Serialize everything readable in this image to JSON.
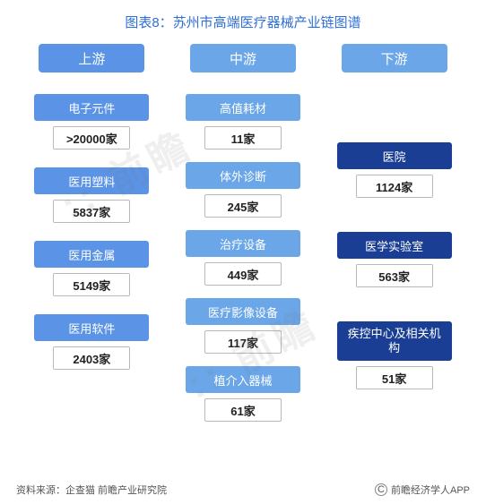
{
  "title": {
    "text": "图表8：苏州市高端医疗器械产业链图谱",
    "color": "#2e6fd8",
    "fontsize": 15
  },
  "layout": {
    "type": "infographic",
    "columns": 3
  },
  "header_fontsize": 15,
  "category_fontsize": 13,
  "count_fontsize": 13,
  "count_border_color": "#b9b9b9",
  "count_text_color": "#222222",
  "columns": [
    {
      "header": "上游",
      "header_color": "#5b93e6",
      "category_color": "#5b93e6",
      "top_gap": 0,
      "group_gap": 10,
      "items": [
        {
          "label": "电子元件",
          "count": ">20000家"
        },
        {
          "label": "医用塑料",
          "count": "5837家"
        },
        {
          "label": "医用金属",
          "count": "5149家"
        },
        {
          "label": "医用软件",
          "count": "2403家"
        }
      ]
    },
    {
      "header": "中游",
      "header_color": "#6aa6e8",
      "category_color": "#6aa6e8",
      "top_gap": 0,
      "group_gap": 4,
      "items": [
        {
          "label": "高值耗材",
          "count": "11家"
        },
        {
          "label": "体外诊断",
          "count": "245家"
        },
        {
          "label": "治疗设备",
          "count": "449家"
        },
        {
          "label": "医疗影像设备",
          "count": "117家"
        },
        {
          "label": "植介入器械",
          "count": "61家"
        }
      ]
    },
    {
      "header": "下游",
      "header_color": "#6aa6e8",
      "category_color": "#1b3e95",
      "top_gap": 54,
      "group_gap": 28,
      "items": [
        {
          "label": "医院",
          "count": "1124家"
        },
        {
          "label": "医学实验室",
          "count": "563家"
        },
        {
          "label": "疾控中心及相关机构",
          "count": "51家",
          "multiline": true
        }
      ]
    }
  ],
  "footer": {
    "source": "资料来源：企查猫 前瞻产业研究院",
    "copyright": "前瞻经济学人APP",
    "text_color": "#555555",
    "fontsize": 11
  },
  "watermark": {
    "text": ":: 前瞻",
    "color": "rgba(120,120,120,0.12)"
  }
}
